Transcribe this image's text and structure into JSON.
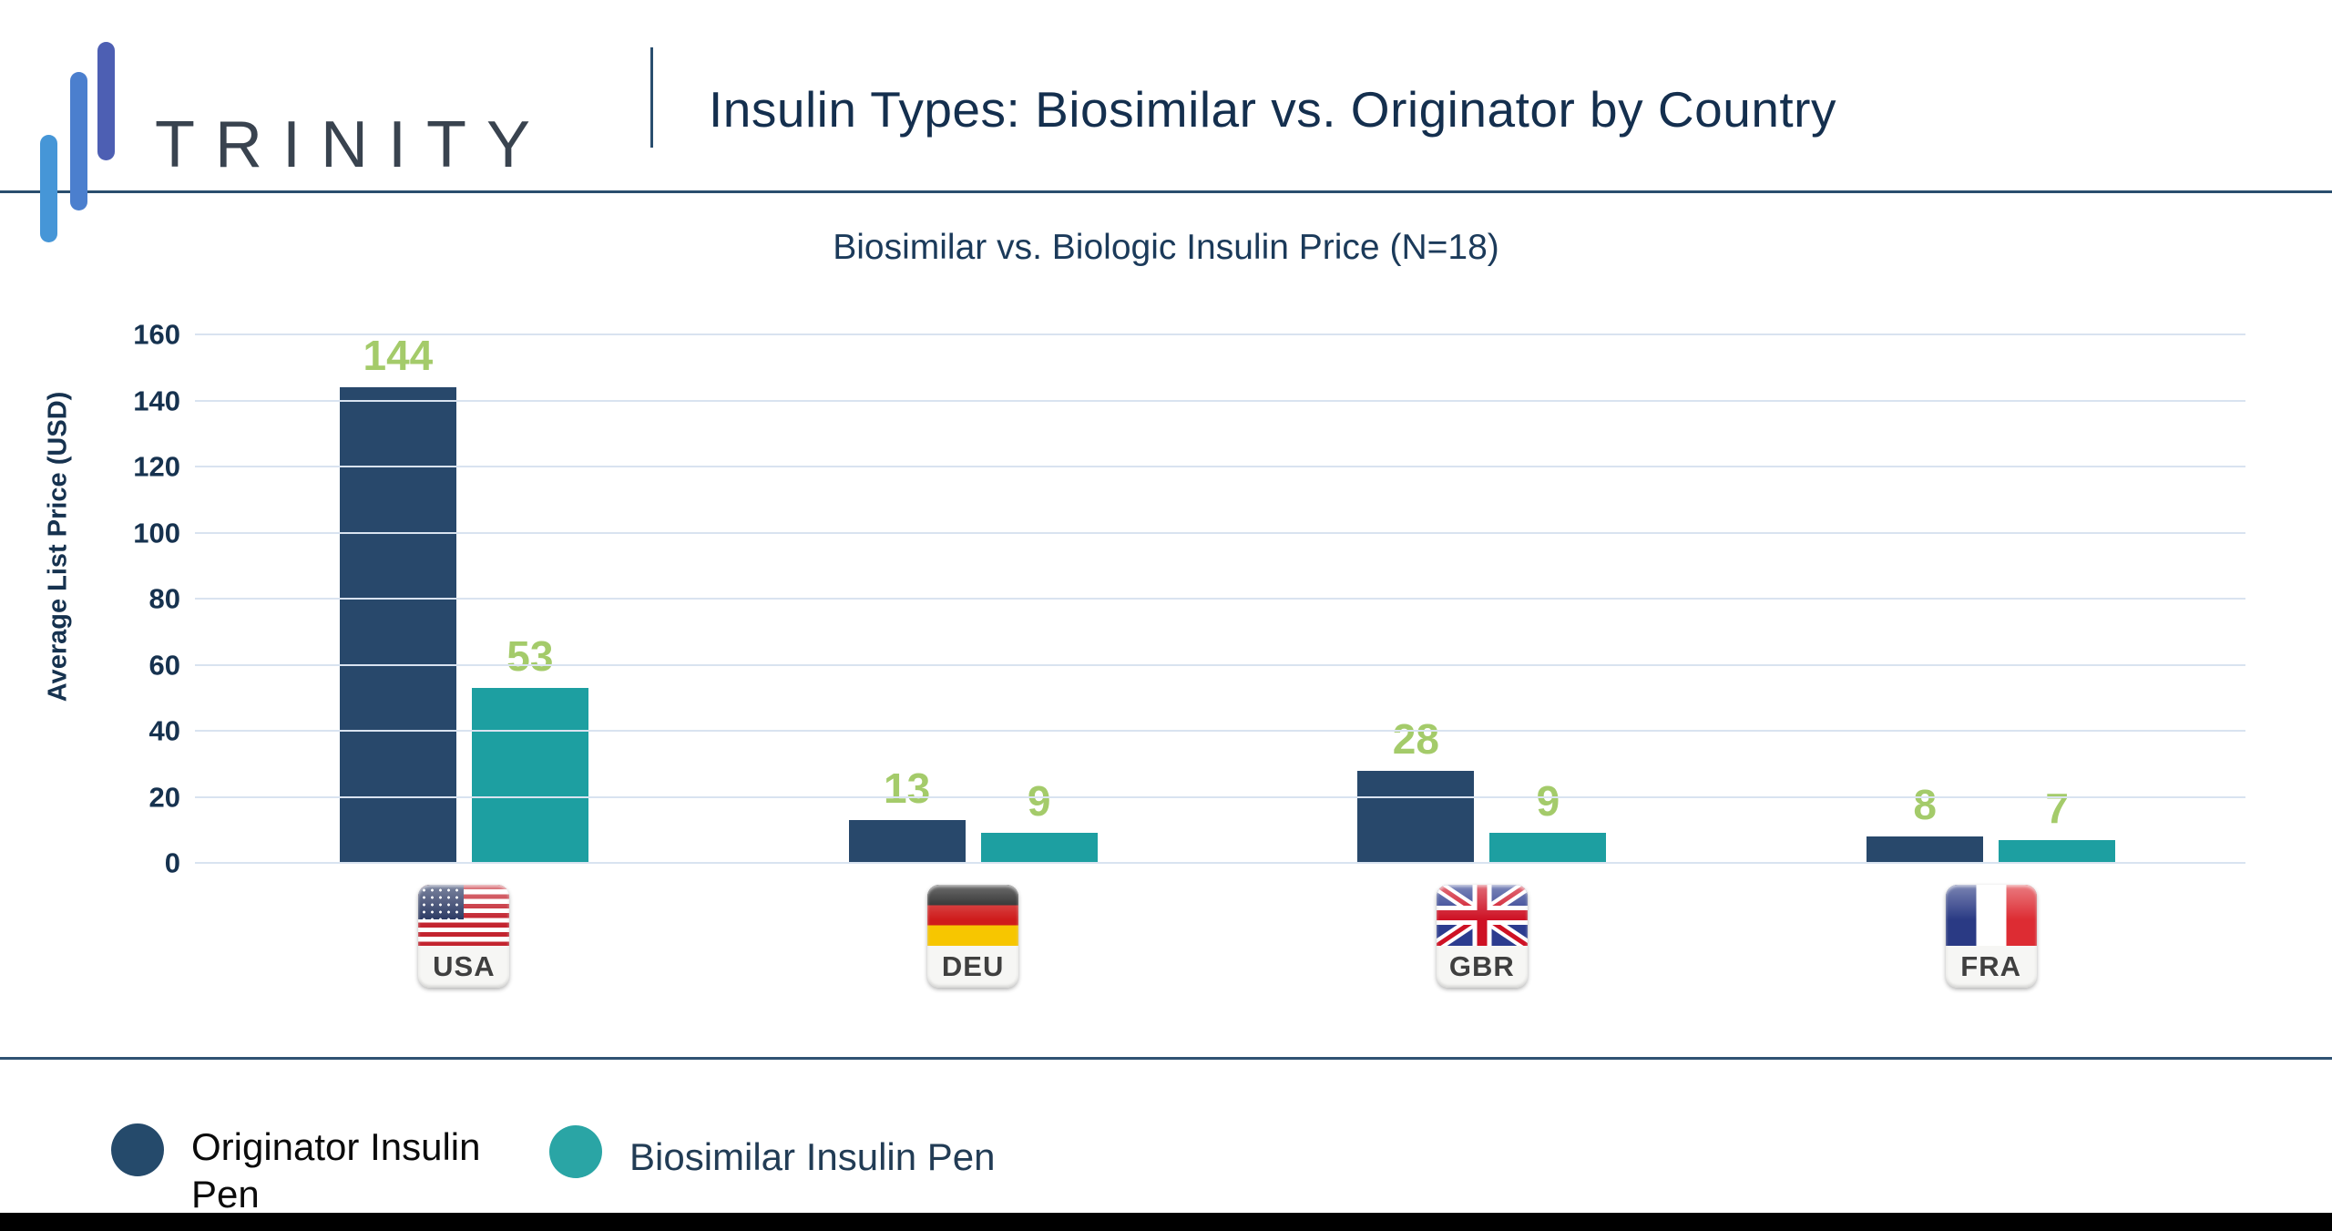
{
  "header": {
    "brand": "TRINITY",
    "title": "Insulin Types: Biosimilar vs. Originator by Country"
  },
  "chart_data": {
    "type": "bar",
    "title": "Biosimilar vs. Biologic Insulin Price (N=18)",
    "xlabel": "",
    "ylabel": "Average List Price (USD)",
    "ylim": [
      0,
      160
    ],
    "yticks": [
      0,
      20,
      40,
      60,
      80,
      100,
      120,
      140,
      160
    ],
    "grid": true,
    "legend_position": "bottom",
    "categories": [
      "USA",
      "DEU",
      "GBR",
      "FRA"
    ],
    "series": [
      {
        "name": "Originator Insulin Pen",
        "color": "#28486B",
        "values": [
          144,
          13,
          28,
          8
        ]
      },
      {
        "name": "Biosimilar Insulin Pen",
        "color": "#1D9FA1",
        "values": [
          53,
          9,
          9,
          7
        ]
      }
    ],
    "value_label_color": "#A4CB6A"
  },
  "legend": {
    "items": [
      {
        "label": "Originator Insulin Pen",
        "swatch_color": "#254A6B",
        "text_color": "#0B0B0B"
      },
      {
        "label": "Biosimilar Insulin Pen",
        "swatch_color": "#2AA5A5",
        "text_color": "#223C55"
      }
    ]
  },
  "colors": {
    "header_rule": "#2A4E6E",
    "page_title": "#142F4E",
    "chart_title": "#1B3A5A",
    "axis_text": "#16324F",
    "gridline": "#D9E3F0",
    "value_label": "#A4CB6A",
    "footer_bar": "#000000",
    "logo_bar_1": "#4696D7",
    "logo_bar_2": "#4B7FCE",
    "logo_bar_3": "#4D5FB3"
  }
}
